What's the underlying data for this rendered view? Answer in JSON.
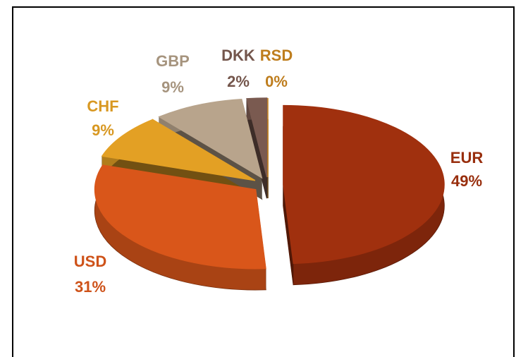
{
  "chart_data": {
    "type": "pie",
    "categories": [
      "EUR",
      "USD",
      "CHF",
      "GBP",
      "DKK",
      "RSD"
    ],
    "values": [
      49,
      31,
      9,
      9,
      2,
      0
    ],
    "value_labels": [
      "49%",
      "31%",
      "9%",
      "9%",
      "2%",
      "0%"
    ],
    "colors": [
      "#a0300e",
      "#d9561a",
      "#e3a024",
      "#b8a48c",
      "#7a5a50",
      "#c8841e"
    ]
  }
}
